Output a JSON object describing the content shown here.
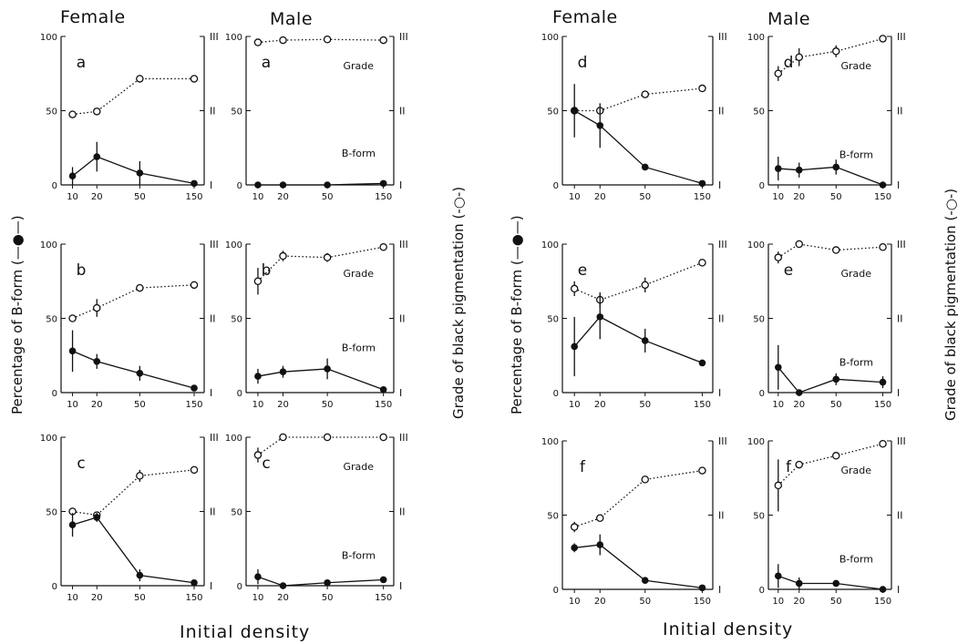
{
  "headers": {
    "left_female": "Female",
    "left_male": "Male",
    "right_female": "Female",
    "right_male": "Male"
  },
  "x_axis_label": "Initial density",
  "y_left_label": "Percentage of B-form",
  "y_right_label": "Grade of black pigmentation",
  "legend_filled": "(—●—)",
  "legend_open": "(-○-)",
  "chart_data": {
    "type": "line",
    "x_categories": [
      10,
      20,
      50,
      150
    ],
    "y_left_ticks": [
      0,
      50,
      100
    ],
    "y_left_range": [
      0,
      100
    ],
    "y_right_ticks": [
      "I",
      "II",
      "III"
    ],
    "y_right_range": [
      1,
      3
    ],
    "series_labels": {
      "grade": "Grade",
      "bform": "B-form"
    },
    "panels": [
      {
        "letter": "a",
        "sex": "Female",
        "bform": [
          6,
          19,
          8,
          1
        ],
        "bform_err": [
          6,
          10,
          8,
          0
        ],
        "grade": [
          1.95,
          1.99,
          2.43,
          2.43
        ],
        "grade_err": [
          0.04,
          0,
          0.05,
          0
        ],
        "show_series_labels": false
      },
      {
        "letter": "a",
        "sex": "Male",
        "bform": [
          0,
          0,
          0,
          1
        ],
        "bform_err": [
          0,
          0,
          0,
          0
        ],
        "grade": [
          2.92,
          2.95,
          2.96,
          2.95
        ],
        "grade_err": [
          0.05,
          0,
          0,
          0
        ],
        "show_series_labels": true
      },
      {
        "letter": "b",
        "sex": "Female",
        "bform": [
          28,
          21,
          13,
          3
        ],
        "bform_err": [
          14,
          5,
          5,
          0
        ],
        "grade": [
          2.0,
          2.14,
          2.41,
          2.45
        ],
        "grade_err": [
          0,
          0.12,
          0.03,
          0
        ],
        "show_series_labels": false
      },
      {
        "letter": "b",
        "sex": "Male",
        "bform": [
          11,
          14,
          16,
          2
        ],
        "bform_err": [
          5,
          4,
          7,
          0
        ],
        "grade": [
          2.5,
          2.84,
          2.82,
          2.96
        ],
        "grade_err": [
          0.18,
          0.07,
          0.06,
          0
        ],
        "show_series_labels": true
      },
      {
        "letter": "c",
        "sex": "Female",
        "bform": [
          41,
          46,
          7,
          2
        ],
        "bform_err": [
          8,
          3,
          4,
          0
        ],
        "grade": [
          2.0,
          1.95,
          2.48,
          2.56
        ],
        "grade_err": [
          0,
          0.05,
          0.08,
          0
        ],
        "show_series_labels": false
      },
      {
        "letter": "c",
        "sex": "Male",
        "bform": [
          6,
          0,
          2,
          4
        ],
        "bform_err": [
          5,
          0,
          0,
          0
        ],
        "grade": [
          2.76,
          3.0,
          3.0,
          3.0
        ],
        "grade_err": [
          0.1,
          0,
          0,
          0
        ],
        "show_series_labels": true
      },
      {
        "letter": "d",
        "sex": "Female",
        "bform": [
          50,
          40,
          12,
          1
        ],
        "bform_err": [
          18,
          15,
          0,
          0
        ],
        "grade": [
          2.0,
          2.0,
          2.22,
          2.3
        ],
        "grade_err": [
          0,
          0,
          0.04,
          0
        ],
        "show_series_labels": false
      },
      {
        "letter": "d",
        "sex": "Male",
        "bform": [
          11,
          10,
          12,
          0
        ],
        "bform_err": [
          8,
          5,
          5,
          0
        ],
        "grade": [
          2.5,
          2.72,
          2.8,
          2.97
        ],
        "grade_err": [
          0.1,
          0.12,
          0.08,
          0
        ],
        "show_series_labels": true
      },
      {
        "letter": "e",
        "sex": "Female",
        "bform": [
          31,
          51,
          35,
          20
        ],
        "bform_err": [
          20,
          15,
          8,
          0
        ],
        "grade": [
          2.4,
          2.25,
          2.45,
          2.75
        ],
        "grade_err": [
          0.1,
          0.1,
          0.1,
          0
        ],
        "show_series_labels": false
      },
      {
        "letter": "e",
        "sex": "Male",
        "bform": [
          17,
          0,
          9,
          7
        ],
        "bform_err": [
          15,
          0,
          4,
          4
        ],
        "grade": [
          2.82,
          3.0,
          2.92,
          2.96
        ],
        "grade_err": [
          0.08,
          0,
          0,
          0
        ],
        "show_series_labels": true
      },
      {
        "letter": "f",
        "sex": "Female",
        "bform": [
          28,
          30,
          6,
          1
        ],
        "bform_err": [
          3,
          7,
          0,
          0
        ],
        "grade": [
          1.84,
          1.96,
          2.48,
          2.6
        ],
        "grade_err": [
          0.07,
          0,
          0,
          0
        ],
        "show_series_labels": false
      },
      {
        "letter": "f",
        "sex": "Male",
        "bform": [
          9,
          4,
          4,
          0
        ],
        "bform_err": [
          8,
          4,
          0,
          0
        ],
        "grade": [
          2.4,
          2.68,
          2.8,
          2.96
        ],
        "grade_err": [
          0.35,
          0,
          0,
          0
        ],
        "show_series_labels": true
      }
    ]
  }
}
